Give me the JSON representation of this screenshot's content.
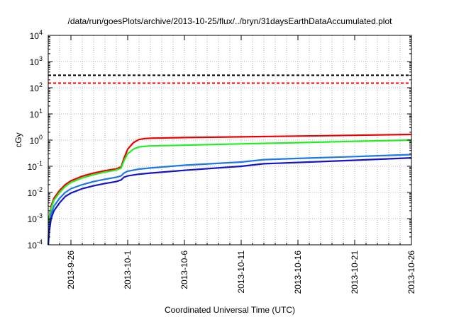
{
  "chart_data": {
    "type": "line",
    "title": "/data/run/goesPlots/archive/2013-10-25/flux/../bryn/31daysEarthDataAccumulated.plot",
    "xlabel": "Coordinated Universal Time (UTC)",
    "ylabel": "cGy",
    "x_range": [
      "2013-09-24",
      "2013-10-26"
    ],
    "ylim": [
      0.0001,
      10000
    ],
    "yscale": "log",
    "grid": true,
    "x_ticks": [
      "2013-9-26",
      "2013-10-1",
      "2013-10-6",
      "2013-10-11",
      "2013-10-16",
      "2013-10-21",
      "2013-10-26"
    ],
    "y_ticks": [
      {
        "base": "10",
        "exp": "-4"
      },
      {
        "base": "10",
        "exp": "-3"
      },
      {
        "base": "10",
        "exp": "-2"
      },
      {
        "base": "10",
        "exp": "-1"
      },
      {
        "base": "10",
        "exp": "0"
      },
      {
        "base": "10",
        "exp": "1"
      },
      {
        "base": "10",
        "exp": "2"
      },
      {
        "base": "10",
        "exp": "3"
      },
      {
        "base": "10",
        "exp": "4"
      }
    ],
    "reference_lines": [
      {
        "y": 300,
        "color": "#000000",
        "style": "dashed"
      },
      {
        "y": 150,
        "color": "#ff0000",
        "style": "dashed"
      }
    ],
    "series": [
      {
        "color": "#ee0000",
        "x": [
          "2013-09-24T00:00",
          "2013-09-24T02:00",
          "2013-09-24T06:00",
          "2013-09-24T12:00",
          "2013-09-25T00:00",
          "2013-09-25T12:00",
          "2013-09-26T00:00",
          "2013-09-27T00:00",
          "2013-09-28T00:00",
          "2013-09-29T00:00",
          "2013-09-30T00:00",
          "2013-09-30T10:00",
          "2013-09-30T16:00",
          "2013-10-01T00:00",
          "2013-10-01T12:00",
          "2013-10-02T00:00",
          "2013-10-02T12:00",
          "2013-10-03T00:00",
          "2013-10-06T00:00",
          "2013-10-11T00:00",
          "2013-10-16T00:00",
          "2013-10-21T00:00",
          "2013-10-26T00:00"
        ],
        "y": [
          0.0001,
          0.001,
          0.003,
          0.006,
          0.012,
          0.02,
          0.028,
          0.042,
          0.055,
          0.068,
          0.08,
          0.095,
          0.2,
          0.45,
          0.8,
          1.05,
          1.15,
          1.18,
          1.25,
          1.33,
          1.43,
          1.53,
          1.65
        ]
      },
      {
        "color": "#22ee22",
        "x": [
          "2013-09-24T00:00",
          "2013-09-24T02:00",
          "2013-09-24T06:00",
          "2013-09-24T12:00",
          "2013-09-25T00:00",
          "2013-09-25T12:00",
          "2013-09-26T00:00",
          "2013-09-27T00:00",
          "2013-09-28T00:00",
          "2013-09-29T00:00",
          "2013-09-30T00:00",
          "2013-09-30T10:00",
          "2013-09-30T16:00",
          "2013-10-01T00:00",
          "2013-10-01T12:00",
          "2013-10-02T00:00",
          "2013-10-02T12:00",
          "2013-10-03T00:00",
          "2013-10-06T00:00",
          "2013-10-11T00:00",
          "2013-10-16T00:00",
          "2013-10-21T00:00",
          "2013-10-26T00:00"
        ],
        "y": [
          0.0001,
          0.0009,
          0.0025,
          0.005,
          0.01,
          0.017,
          0.024,
          0.036,
          0.048,
          0.06,
          0.072,
          0.085,
          0.16,
          0.3,
          0.45,
          0.55,
          0.58,
          0.6,
          0.64,
          0.72,
          0.8,
          0.9,
          1.0
        ]
      },
      {
        "color": "#1e78e6",
        "x": [
          "2013-09-24T00:00",
          "2013-09-24T02:00",
          "2013-09-24T06:00",
          "2013-09-24T12:00",
          "2013-09-25T00:00",
          "2013-09-25T12:00",
          "2013-09-26T00:00",
          "2013-09-27T00:00",
          "2013-09-28T00:00",
          "2013-09-29T00:00",
          "2013-09-30T00:00",
          "2013-09-30T10:00",
          "2013-09-30T16:00",
          "2013-10-01T00:00",
          "2013-10-02T00:00",
          "2013-10-03T00:00",
          "2013-10-06T00:00",
          "2013-10-11T00:00",
          "2013-10-13T00:00",
          "2013-10-16T00:00",
          "2013-10-21T00:00",
          "2013-10-26T00:00"
        ],
        "y": [
          0.0001,
          0.0005,
          0.0015,
          0.003,
          0.006,
          0.01,
          0.014,
          0.02,
          0.026,
          0.032,
          0.038,
          0.043,
          0.055,
          0.065,
          0.078,
          0.086,
          0.11,
          0.145,
          0.18,
          0.2,
          0.235,
          0.28
        ]
      },
      {
        "color": "#1414c8",
        "x": [
          "2013-09-24T00:00",
          "2013-09-24T02:00",
          "2013-09-24T06:00",
          "2013-09-24T12:00",
          "2013-09-25T00:00",
          "2013-09-25T12:00",
          "2013-09-26T00:00",
          "2013-09-27T00:00",
          "2013-09-28T00:00",
          "2013-09-29T00:00",
          "2013-09-30T00:00",
          "2013-09-30T10:00",
          "2013-09-30T16:00",
          "2013-10-01T00:00",
          "2013-10-02T00:00",
          "2013-10-03T00:00",
          "2013-10-06T00:00",
          "2013-10-11T00:00",
          "2013-10-13T00:00",
          "2013-10-16T00:00",
          "2013-10-21T00:00",
          "2013-10-26T00:00"
        ],
        "y": [
          0.0001,
          0.0003,
          0.001,
          0.002,
          0.004,
          0.007,
          0.0095,
          0.014,
          0.018,
          0.022,
          0.026,
          0.03,
          0.038,
          0.043,
          0.05,
          0.055,
          0.07,
          0.1,
          0.125,
          0.14,
          0.17,
          0.21
        ]
      }
    ]
  }
}
